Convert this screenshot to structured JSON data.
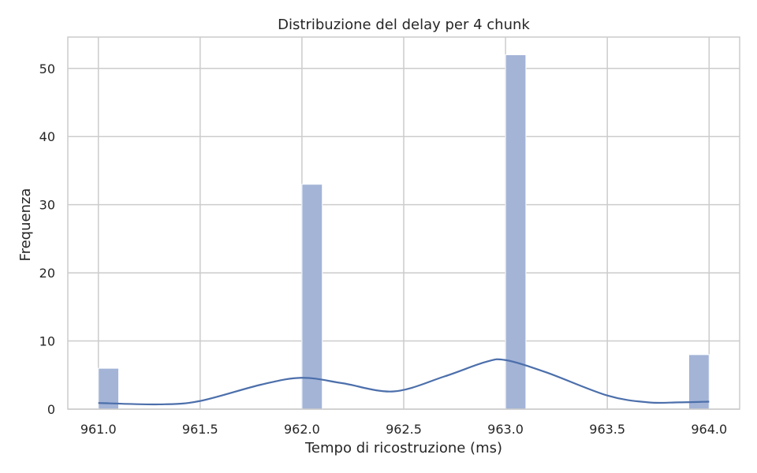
{
  "chart_data": {
    "type": "bar",
    "title": "Distribuzione del delay per 4 chunk",
    "xlabel": "Tempo di ricostruzione (ms)",
    "ylabel": "Frequenza",
    "xlim": [
      960.85,
      964.15
    ],
    "ylim": [
      0,
      54.6
    ],
    "grid": true,
    "x_ticks": [
      961.0,
      961.5,
      962.0,
      962.5,
      963.0,
      963.5,
      964.0
    ],
    "x_tick_labels": [
      "961.0",
      "961.5",
      "962.0",
      "962.5",
      "963.0",
      "963.5",
      "964.0"
    ],
    "y_ticks": [
      0,
      10,
      20,
      30,
      40,
      50
    ],
    "y_tick_labels": [
      "0",
      "10",
      "20",
      "30",
      "40",
      "50"
    ],
    "bars": [
      {
        "x_start": 961.0,
        "x_end": 961.1,
        "value": 6
      },
      {
        "x_start": 962.0,
        "x_end": 962.1,
        "value": 33
      },
      {
        "x_start": 963.0,
        "x_end": 963.1,
        "value": 52
      },
      {
        "x_start": 963.9,
        "x_end": 964.0,
        "value": 8
      }
    ],
    "kde": {
      "x": [
        961.0,
        961.3,
        961.5,
        961.8,
        962.0,
        962.2,
        962.45,
        962.7,
        962.9,
        963.0,
        963.2,
        963.5,
        963.7,
        963.85,
        964.0
      ],
      "y": [
        0.9,
        0.7,
        1.2,
        3.6,
        4.6,
        3.8,
        2.6,
        4.8,
        6.9,
        7.2,
        5.4,
        2.0,
        1.0,
        1.0,
        1.1
      ]
    },
    "colors": {
      "bar": "#a3b4d7",
      "kde": "#4c6fab",
      "grid": "#cccccc",
      "axis": "#cccccc",
      "text": "#262626"
    }
  }
}
